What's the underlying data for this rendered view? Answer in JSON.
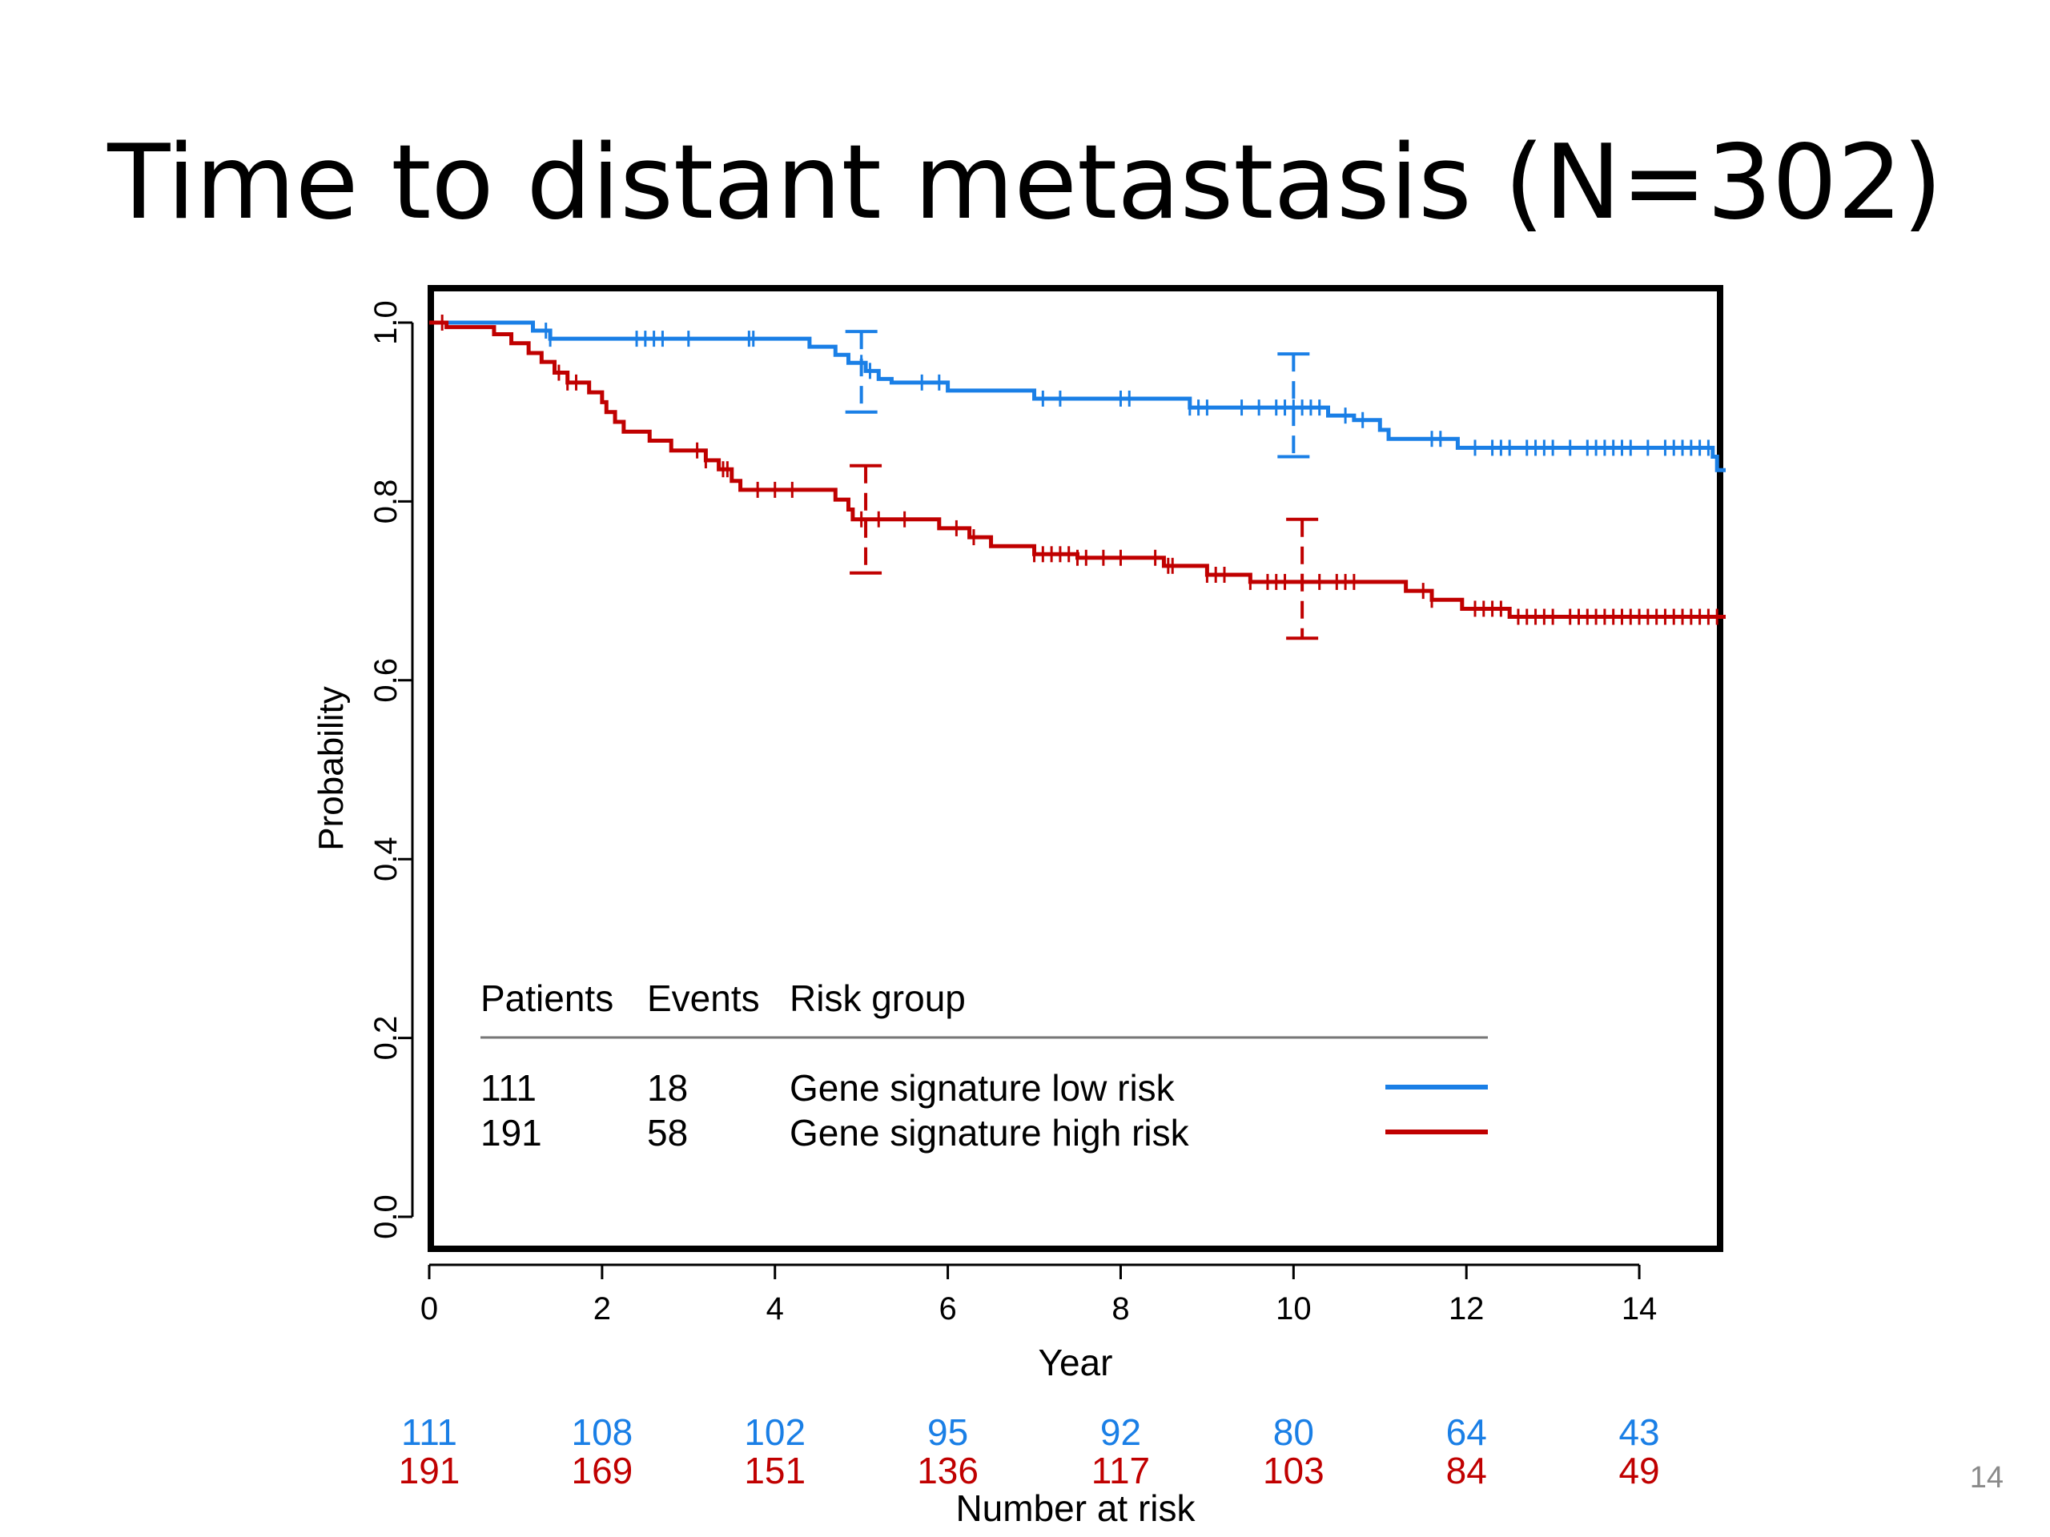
{
  "slide": {
    "title": "Time to distant metastasis (N=302)",
    "page_number": "14"
  },
  "colors": {
    "low_risk": "#1a7fe6",
    "high_risk": "#c00000",
    "text": "#000000"
  },
  "chart_data": {
    "type": "line",
    "title": "",
    "xlabel": "Year",
    "ylabel": "Probability",
    "xlim": [
      0,
      15
    ],
    "ylim": [
      0,
      1
    ],
    "xticks": [
      "0",
      "2",
      "4",
      "6",
      "8",
      "10",
      "12",
      "14"
    ],
    "yticks": [
      "0.0",
      "0.2",
      "0.4",
      "0.6",
      "0.8",
      "1.0"
    ],
    "grid": false,
    "series": [
      {
        "name": "Gene signature low risk",
        "color": "#1a7fe6",
        "patients": "111",
        "events": "18",
        "steps": [
          [
            0,
            1.0
          ],
          [
            1.2,
            0.991
          ],
          [
            1.4,
            0.982
          ],
          [
            4.35,
            0.982
          ],
          [
            4.4,
            0.973
          ],
          [
            4.7,
            0.964
          ],
          [
            4.85,
            0.955
          ],
          [
            5.05,
            0.946
          ],
          [
            5.2,
            0.937
          ],
          [
            5.35,
            0.933
          ],
          [
            6.0,
            0.924
          ],
          [
            7.0,
            0.915
          ],
          [
            8.8,
            0.905
          ],
          [
            10.4,
            0.896
          ],
          [
            10.7,
            0.891
          ],
          [
            11.0,
            0.88
          ],
          [
            11.1,
            0.87
          ],
          [
            11.9,
            0.86
          ],
          [
            14.85,
            0.85
          ],
          [
            14.9,
            0.835
          ],
          [
            15,
            0.835
          ]
        ],
        "censor_times": [
          1.35,
          1.4,
          2.4,
          2.5,
          2.6,
          2.7,
          3.0,
          3.7,
          3.75,
          5.0,
          5.1,
          5.7,
          5.9,
          7.1,
          7.3,
          8.0,
          8.1,
          8.8,
          8.9,
          9.0,
          9.4,
          9.6,
          9.8,
          9.9,
          10.0,
          10.1,
          10.2,
          10.3,
          10.6,
          10.8,
          11.6,
          11.7,
          12.1,
          12.3,
          12.4,
          12.5,
          12.7,
          12.8,
          12.9,
          13.0,
          13.2,
          13.4,
          13.5,
          13.6,
          13.7,
          13.8,
          13.9,
          14.1,
          14.3,
          14.4,
          14.5,
          14.6,
          14.7,
          14.8
        ],
        "ci": [
          {
            "x": 5.0,
            "lower": 0.9,
            "upper": 0.99
          },
          {
            "x": 10.0,
            "lower": 0.85,
            "upper": 0.965
          }
        ]
      },
      {
        "name": "Gene signature high risk",
        "color": "#c00000",
        "patients": "191",
        "events": "58",
        "steps": [
          [
            0,
            1.0
          ],
          [
            0.2,
            0.995
          ],
          [
            0.75,
            0.987
          ],
          [
            0.95,
            0.977
          ],
          [
            1.15,
            0.966
          ],
          [
            1.3,
            0.956
          ],
          [
            1.45,
            0.944
          ],
          [
            1.6,
            0.933
          ],
          [
            1.85,
            0.922
          ],
          [
            2.0,
            0.911
          ],
          [
            2.05,
            0.9
          ],
          [
            2.15,
            0.889
          ],
          [
            2.25,
            0.878
          ],
          [
            2.55,
            0.868
          ],
          [
            2.8,
            0.857
          ],
          [
            3.2,
            0.846
          ],
          [
            3.35,
            0.836
          ],
          [
            3.5,
            0.823
          ],
          [
            3.6,
            0.813
          ],
          [
            4.7,
            0.802
          ],
          [
            4.85,
            0.791
          ],
          [
            4.9,
            0.78
          ],
          [
            5.9,
            0.77
          ],
          [
            6.25,
            0.76
          ],
          [
            6.5,
            0.75
          ],
          [
            7.0,
            0.741
          ],
          [
            7.5,
            0.737
          ],
          [
            8.5,
            0.728
          ],
          [
            9.0,
            0.718
          ],
          [
            9.5,
            0.71
          ],
          [
            11.3,
            0.7
          ],
          [
            11.6,
            0.69
          ],
          [
            11.95,
            0.68
          ],
          [
            12.5,
            0.671
          ],
          [
            15,
            0.671
          ]
        ],
        "censor_times": [
          0.15,
          1.5,
          1.6,
          1.7,
          3.1,
          3.2,
          3.4,
          3.45,
          3.8,
          4.0,
          4.2,
          5.0,
          5.2,
          5.5,
          6.1,
          6.3,
          7.0,
          7.1,
          7.2,
          7.3,
          7.4,
          7.5,
          7.6,
          7.8,
          8.0,
          8.4,
          8.55,
          8.6,
          9.0,
          9.1,
          9.2,
          9.5,
          9.7,
          9.8,
          9.9,
          10.1,
          10.3,
          10.5,
          10.6,
          10.7,
          11.5,
          11.6,
          12.1,
          12.2,
          12.3,
          12.4,
          12.6,
          12.7,
          12.8,
          12.9,
          13.0,
          13.2,
          13.3,
          13.4,
          13.5,
          13.6,
          13.7,
          13.8,
          13.9,
          14.0,
          14.1,
          14.2,
          14.3,
          14.4,
          14.5,
          14.6,
          14.7,
          14.8,
          14.9
        ],
        "ci": [
          {
            "x": 5.05,
            "lower": 0.72,
            "upper": 0.84
          },
          {
            "x": 10.1,
            "lower": 0.647,
            "upper": 0.78
          }
        ]
      }
    ],
    "legend": {
      "placement": "bottom-left",
      "headers": [
        "Patients",
        "Events",
        "Risk group"
      ]
    },
    "number_at_risk": {
      "label": "Number at risk",
      "times": [
        0,
        2,
        4,
        6,
        8,
        10,
        12,
        14
      ],
      "low_risk": [
        "111",
        "108",
        "102",
        "95",
        "92",
        "80",
        "64",
        "43"
      ],
      "high_risk": [
        "191",
        "169",
        "151",
        "136",
        "117",
        "103",
        "84",
        "49"
      ]
    }
  }
}
